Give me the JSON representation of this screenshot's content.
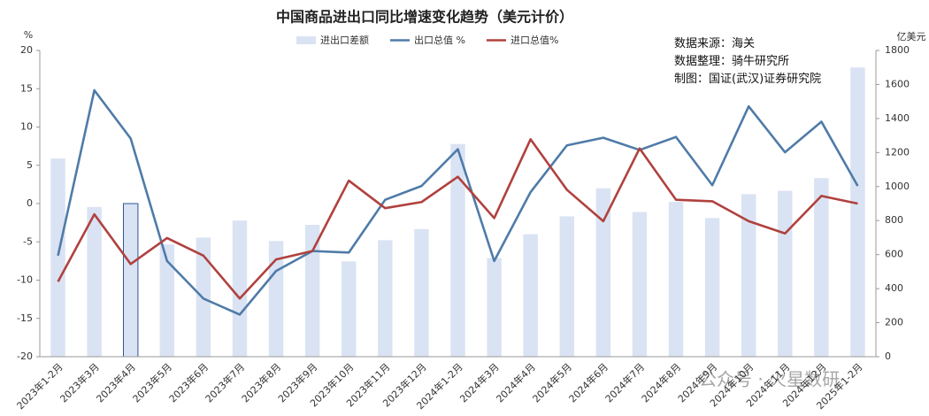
{
  "chart_data": {
    "type": "bar-line",
    "title": "中国商品进出口同比增速变化趋势（美元计价）",
    "y_label": "%",
    "y2_label": "亿美元",
    "annotations": [
      "数据来源：海关",
      "数据整理：骑牛研究所",
      "制图：国证(武汉)证券研究院"
    ],
    "watermark": "公众号 · 火星数研",
    "categories": [
      "2023年1-2月",
      "2023年3月",
      "2023年4月",
      "2023年5月",
      "2023年6月",
      "2023年7月",
      "2023年8月",
      "2023年9月",
      "2023年10月",
      "2023年11月",
      "2023年12月",
      "2024年1-2月",
      "2024年3月",
      "2024年4月",
      "2024年5月",
      "2024年6月",
      "2024年7月",
      "2024年8月",
      "2024年9月",
      "2024年10月",
      "2024年11月",
      "2024年12月",
      "2025年1-2月"
    ],
    "series": [
      {
        "name": "进出口差额",
        "type": "bar",
        "axis": "y2",
        "color": "#dae3f3",
        "highlight": 2,
        "values": [
          1165,
          880,
          900,
          660,
          700,
          800,
          680,
          775,
          560,
          685,
          750,
          1250,
          580,
          720,
          825,
          990,
          850,
          910,
          815,
          955,
          975,
          1050,
          1700
        ]
      },
      {
        "name": "出口总值 %",
        "type": "line",
        "color": "#4f7ba8",
        "values": [
          -6.8,
          14.8,
          8.5,
          -7.5,
          -12.4,
          -14.5,
          -8.8,
          -6.2,
          -6.4,
          0.5,
          2.3,
          7.1,
          -7.5,
          1.5,
          7.6,
          8.6,
          7.0,
          8.7,
          2.4,
          12.7,
          6.7,
          10.7,
          2.3
        ]
      },
      {
        "name": "进口总值%",
        "type": "line",
        "color": "#b0413e",
        "values": [
          -10.2,
          -1.4,
          -7.9,
          -4.5,
          -6.8,
          -12.4,
          -7.3,
          -6.2,
          3.0,
          -0.6,
          0.2,
          3.5,
          -1.9,
          8.4,
          1.8,
          -2.3,
          7.2,
          0.5,
          0.3,
          -2.3,
          -3.9,
          1.0,
          0
        ]
      }
    ],
    "ylim": [
      -20,
      20
    ],
    "yticks": [
      -20,
      -15,
      -10,
      -5,
      0,
      5,
      10,
      15,
      20
    ],
    "y2lim": [
      0,
      1800
    ],
    "y2ticks": [
      0,
      200,
      400,
      600,
      800,
      1000,
      1200,
      1400,
      1600,
      1800
    ]
  }
}
